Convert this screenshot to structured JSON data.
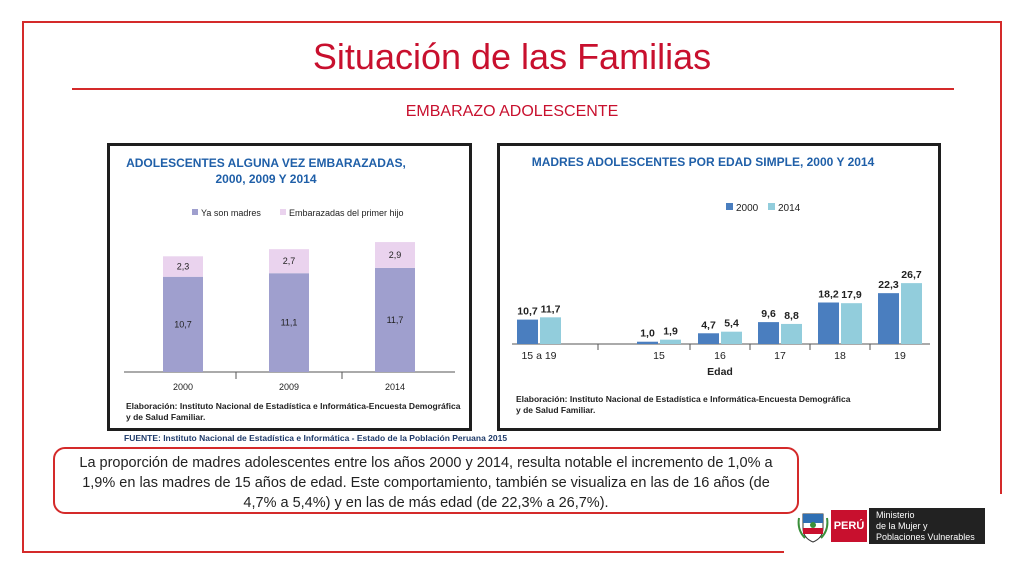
{
  "slide": {
    "title": "Situación de las Familias",
    "subtitle": "EMBARAZO ADOLESCENTE",
    "source": "FUENTE: Instituto Nacional de Estadística e Informática - Estado de la Población Peruana 2015",
    "callout": "La proporción de madres adolescentes entre los años 2000 y 2014, resulta notable el incremento de 1,0% a 1,9% en las madres de 15 años de edad. Este comportamiento, también se visualiza en las de 16 años (de 4,7% a 5,4%) y en las de más edad (de 22,3% a 26,7%).",
    "logo": {
      "peru": "PERÚ",
      "ministry_lines": [
        "Ministerio",
        "de la Mujer y",
        "Poblaciones Vulnerables"
      ]
    },
    "colors": {
      "accent": "#c8102e",
      "chart_title": "#1f5fa8"
    }
  },
  "chart_data": [
    {
      "type": "bar",
      "stacked": true,
      "title_lines": [
        "ADOLESCENTES ALGUNA VEZ EMBARAZADAS,",
        "2000, 2009 Y 2014"
      ],
      "categories": [
        "2000",
        "2009",
        "2014"
      ],
      "series": [
        {
          "name": "Ya son madres",
          "values": [
            10.7,
            11.1,
            11.7
          ],
          "labels": [
            "10,7",
            "11,1",
            "11,7"
          ],
          "color": "#9f9fce"
        },
        {
          "name": "Embarazadas del primer hijo",
          "values": [
            2.3,
            2.7,
            2.9
          ],
          "labels": [
            "2,3",
            "2,7",
            "2,9"
          ],
          "color": "#ead3ee"
        }
      ],
      "legend": "top",
      "grid": false,
      "footnote_lines": [
        "Elaboración: Instituto Nacional de Estadística e Informática-Encuesta Demográfica",
        "y de Salud Familiar."
      ]
    },
    {
      "type": "bar",
      "title": "MADRES ADOLESCENTES POR EDAD SIMPLE, 2000 Y 2014",
      "xlabel": "Edad",
      "categories": [
        "15 a 19",
        "",
        "15",
        "16",
        "17",
        "18",
        "19"
      ],
      "series": [
        {
          "name": "2000",
          "values": [
            10.7,
            null,
            1.0,
            4.7,
            9.6,
            18.2,
            22.3
          ],
          "labels": [
            "10,7",
            "",
            "1,0",
            "4,7",
            "9,6",
            "18,2",
            "22,3"
          ],
          "color": "#4a7ebf"
        },
        {
          "name": "2014",
          "values": [
            11.7,
            null,
            1.9,
            5.4,
            8.8,
            17.9,
            26.7
          ],
          "labels": [
            "11,7",
            "",
            "1,9",
            "5,4",
            "8,8",
            "17,9",
            "26,7"
          ],
          "color": "#92cddc"
        }
      ],
      "legend": "top",
      "grid": false,
      "footnote_lines": [
        "Elaboración: Instituto Nacional de Estadística e Informática-Encuesta Demográfica",
        "y de Salud Familiar."
      ]
    }
  ]
}
